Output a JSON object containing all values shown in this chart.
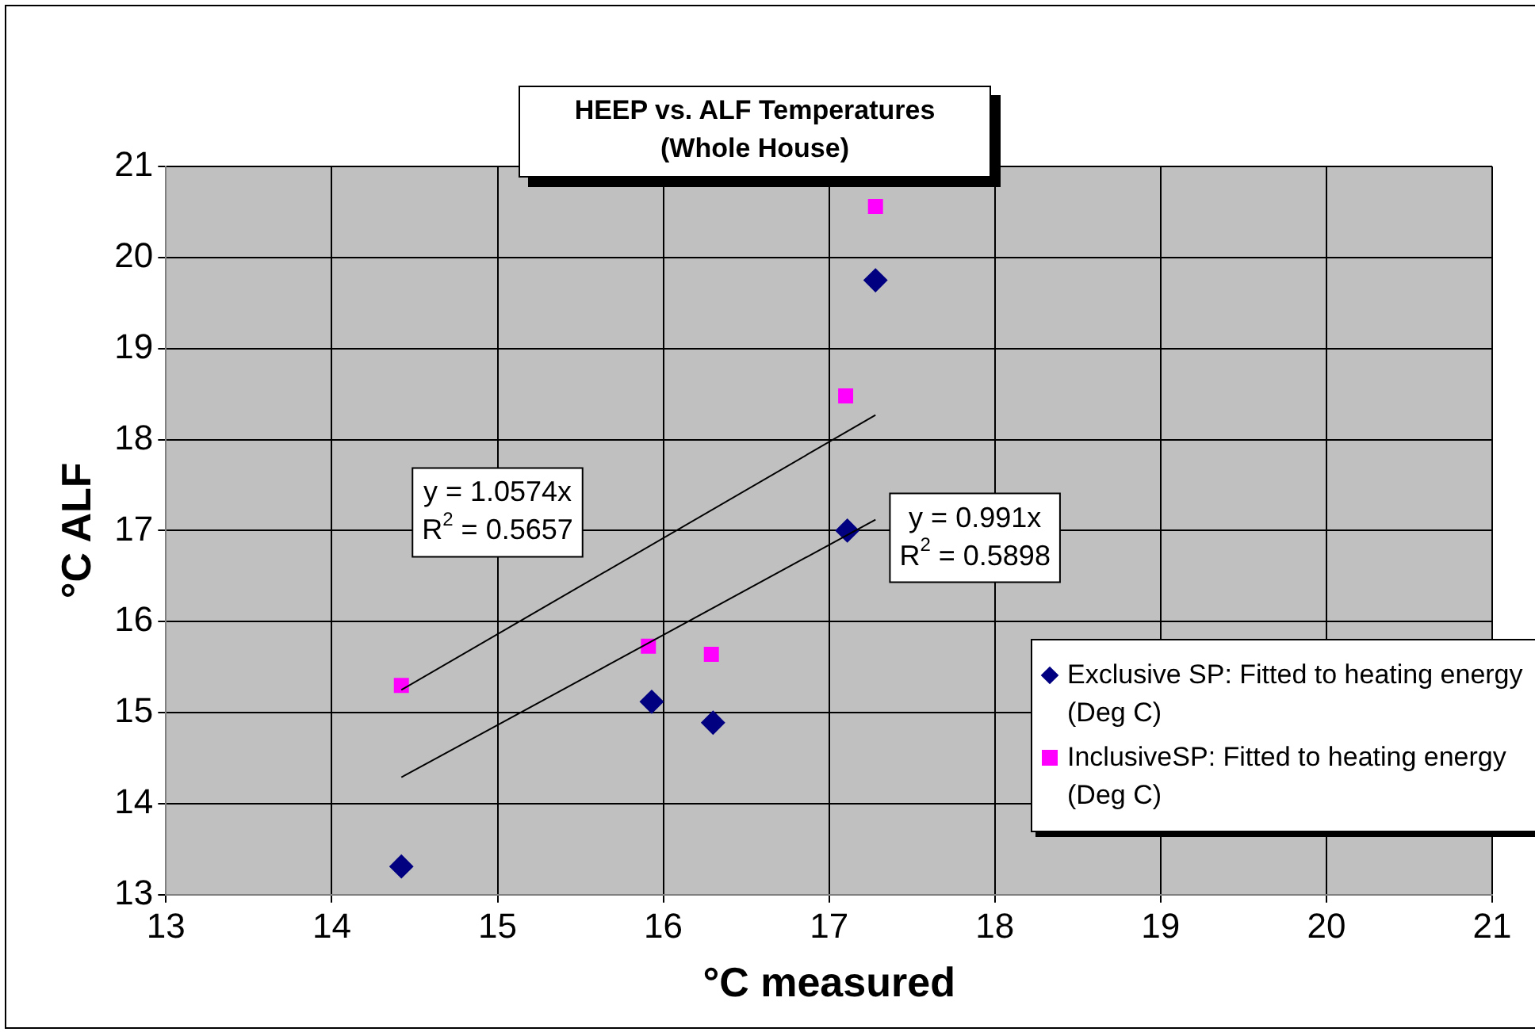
{
  "chart_data": {
    "type": "scatter",
    "title": "HEEP vs. ALF Temperatures\n(Whole House)",
    "xlabel": "°C measured",
    "ylabel": "°C ALF",
    "xlim": [
      13,
      21
    ],
    "xticks": [
      13,
      14,
      15,
      16,
      17,
      18,
      19,
      20,
      21
    ],
    "ylim": [
      13,
      21
    ],
    "yticks": [
      13,
      14,
      15,
      16,
      17,
      18,
      19,
      20,
      21
    ],
    "grid": true,
    "legend": "bottom right",
    "series": [
      {
        "name": "Exclusive SP: Fitted to heating energy (Deg C)",
        "color": "#000080",
        "marker": "diamond",
        "x": [
          14.42,
          15.93,
          16.3,
          17.11,
          17.28
        ],
        "values": [
          13.31,
          15.12,
          14.89,
          17.0,
          19.75
        ]
      },
      {
        "name": "InclusiveSP: Fitted to heating energy (Deg C)",
        "color": "#ff00ff",
        "marker": "square",
        "x": [
          14.42,
          15.91,
          16.29,
          17.1,
          17.28
        ],
        "values": [
          15.3,
          15.73,
          15.64,
          18.48,
          20.56
        ]
      },
      {
        "type": "line",
        "color": "#000000",
        "marker": "none",
        "x": [
          14.42,
          17.28
        ],
        "values": [
          15.25,
          18.27
        ]
      },
      {
        "type": "line",
        "color": "#000000",
        "marker": "none",
        "x": [
          14.42,
          17.28
        ],
        "values": [
          14.29,
          17.12
        ]
      }
    ],
    "annotations": [
      "y = 1.0574x\nR$^{2}$ = 0.5657",
      "y = 0.991x\nR$^{2}$ = 0.5898"
    ]
  }
}
